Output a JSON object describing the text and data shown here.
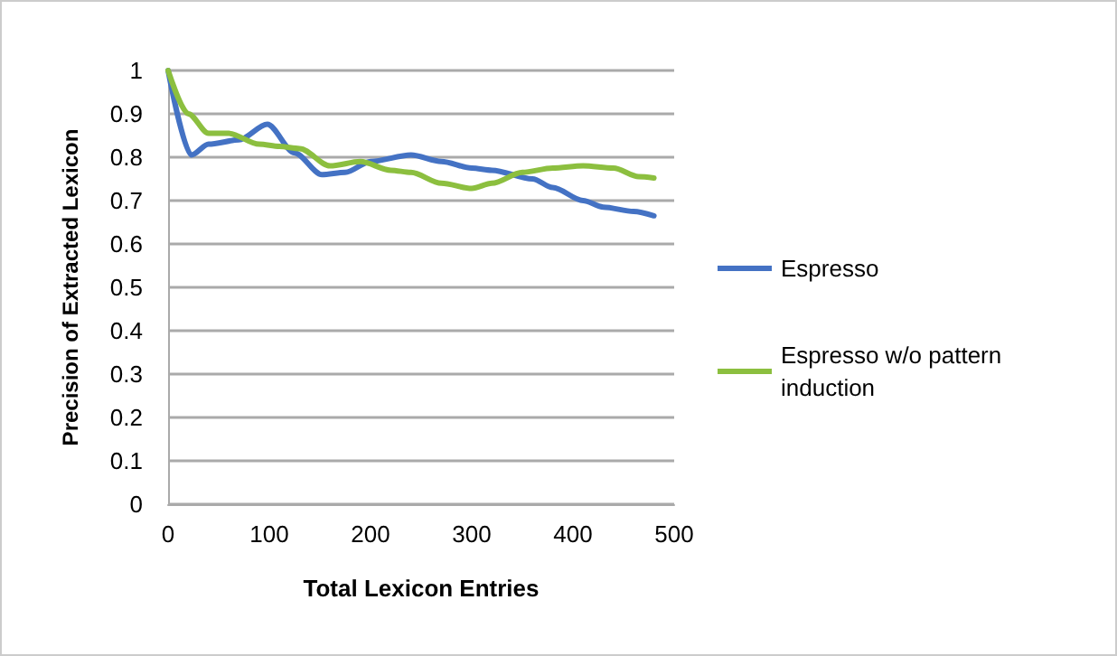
{
  "chart_data": {
    "type": "line",
    "xlabel": "Total Lexicon Entries",
    "ylabel": "Precision of Extracted Lexicon",
    "xlim": [
      0,
      500
    ],
    "xticks": [
      0,
      100,
      200,
      300,
      400,
      500
    ],
    "ylim": [
      0,
      1
    ],
    "yticks": [
      0,
      0.1,
      0.2,
      0.3,
      0.4,
      0.5,
      0.6,
      0.7,
      0.8,
      0.9,
      1
    ],
    "grid": "y",
    "legend": "right",
    "marker": "none",
    "line_style": "solid",
    "series": [
      {
        "name": "Espresso",
        "color": "#4472c4",
        "x": [
          0,
          23,
          40,
          70,
          98,
          125,
          152,
          175,
          200,
          240,
          270,
          300,
          320,
          360,
          380,
          410,
          430,
          460,
          480
        ],
        "values": [
          1.0,
          0.805,
          0.83,
          0.84,
          0.876,
          0.81,
          0.76,
          0.765,
          0.79,
          0.805,
          0.79,
          0.775,
          0.77,
          0.75,
          0.73,
          0.7,
          0.685,
          0.675,
          0.665
        ]
      },
      {
        "name": "Espresso w/o pattern induction",
        "color": "#8cbf3f",
        "x": [
          0,
          20,
          40,
          60,
          90,
          110,
          130,
          160,
          190,
          220,
          240,
          270,
          300,
          320,
          350,
          380,
          410,
          440,
          465,
          480
        ],
        "values": [
          1.0,
          0.9,
          0.855,
          0.855,
          0.83,
          0.825,
          0.82,
          0.78,
          0.79,
          0.77,
          0.765,
          0.74,
          0.728,
          0.74,
          0.765,
          0.775,
          0.78,
          0.775,
          0.755,
          0.752
        ]
      }
    ]
  }
}
